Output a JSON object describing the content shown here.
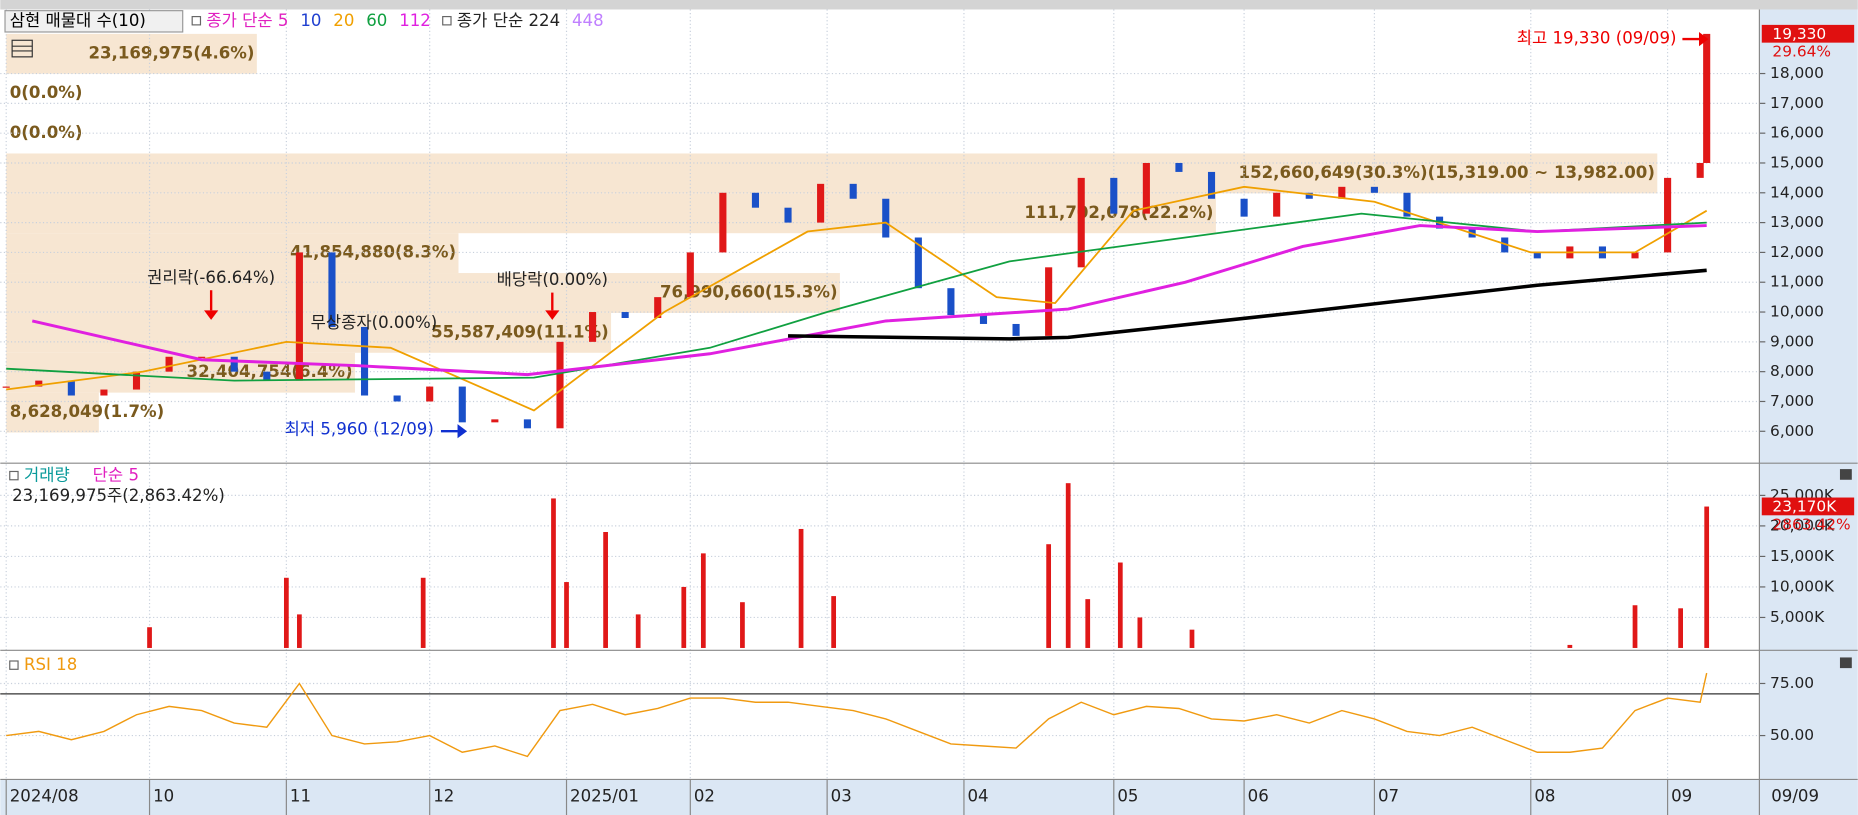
{
  "header": {
    "title": "삼현 매물대 수(10)"
  },
  "ma_legend": [
    {
      "name": "종가 단순 5",
      "color": "#e020c0"
    },
    {
      "name": "10",
      "color": "#2040d0"
    },
    {
      "name": "20",
      "color": "#f0a000"
    },
    {
      "name": "60",
      "color": "#10a040"
    },
    {
      "name": "112",
      "color": "#e020e0"
    },
    {
      "name": "종가 단순 224",
      "color": "#000000"
    },
    {
      "name": "448",
      "color": "#c080ff"
    }
  ],
  "xaxis": {
    "xlim": [
      0,
      261
    ],
    "ticks": [
      {
        "value": 0,
        "label": "2024/08"
      },
      {
        "value": 22,
        "label": "10"
      },
      {
        "value": 43,
        "label": "11"
      },
      {
        "value": 65,
        "label": "12"
      },
      {
        "value": 86,
        "label": "2025/01"
      },
      {
        "value": 105,
        "label": "02"
      },
      {
        "value": 126,
        "label": "03"
      },
      {
        "value": 147,
        "label": "04"
      },
      {
        "value": 170,
        "label": "05"
      },
      {
        "value": 190,
        "label": "06"
      },
      {
        "value": 210,
        "label": "07"
      },
      {
        "value": 234,
        "label": "08"
      },
      {
        "value": 255,
        "label": "09"
      }
    ],
    "current": "09/09"
  },
  "price": {
    "ylim": [
      4970,
      19990
    ],
    "yticks": [
      {
        "value": 6000,
        "label": "6,000"
      },
      {
        "value": 7000,
        "label": "7,000"
      },
      {
        "value": 8000,
        "label": "8,000"
      },
      {
        "value": 9000,
        "label": "9,000"
      },
      {
        "value": 10000,
        "label": "10,000"
      },
      {
        "value": 11000,
        "label": "11,000"
      },
      {
        "value": 12000,
        "label": "12,000"
      },
      {
        "value": 13000,
        "label": "13,000"
      },
      {
        "value": 14000,
        "label": "14,000"
      },
      {
        "value": 15000,
        "label": "15,000"
      },
      {
        "value": 16000,
        "label": "16,000"
      },
      {
        "value": 17000,
        "label": "17,000"
      },
      {
        "value": 18000,
        "label": "18,000"
      }
    ],
    "last_label": "19,330",
    "change_label": "29.64%",
    "x": [
      0,
      5,
      10,
      15,
      20,
      25,
      30,
      35,
      40,
      45,
      50,
      55,
      60,
      65,
      70,
      75,
      80,
      85,
      90,
      95,
      100,
      105,
      110,
      115,
      120,
      125,
      130,
      135,
      140,
      145,
      150,
      155,
      160,
      165,
      170,
      175,
      180,
      185,
      190,
      195,
      200,
      205,
      210,
      215,
      220,
      225,
      230,
      235,
      240,
      245,
      250,
      255,
      260,
      261
    ],
    "close": [
      7500,
      7700,
      7200,
      7400,
      8000,
      8500,
      8500,
      8000,
      7700,
      12000,
      9500,
      7200,
      7000,
      7500,
      6300,
      6400,
      6100,
      9000,
      10000,
      9800,
      10500,
      12000,
      14000,
      13500,
      13000,
      14300,
      13800,
      12500,
      10800,
      9900,
      9600,
      9200,
      11500,
      14500,
      13300,
      15000,
      14700,
      13800,
      13200,
      14000,
      13800,
      14200,
      14000,
      13200,
      12800,
      12500,
      12000,
      11800,
      12200,
      11800,
      12000,
      14500,
      15000,
      19330
    ],
    "ma": [
      {
        "name": "20",
        "color": "#f0a000",
        "x": [
          0,
          21,
          43,
          59,
          81,
          101,
          123,
          135,
          152,
          161,
          173,
          190,
          210,
          234,
          250,
          261
        ],
        "values": [
          7400,
          8000,
          9000,
          8800,
          6700,
          10000,
          12700,
          13000,
          10500,
          10300,
          13400,
          14200,
          13700,
          12000,
          12000,
          13400
        ]
      },
      {
        "name": "60",
        "color": "#10a040",
        "x": [
          0,
          35,
          81,
          108,
          126,
          154,
          181,
          208,
          235,
          261
        ],
        "values": [
          8100,
          7700,
          7800,
          8800,
          10000,
          11700,
          12500,
          13300,
          12700,
          13000
        ]
      },
      {
        "name": "112",
        "color": "#e020e0",
        "x": [
          4,
          30,
          54,
          80,
          108,
          135,
          163,
          181,
          199,
          217,
          235,
          261
        ],
        "values": [
          9700,
          8400,
          8200,
          7900,
          8600,
          9700,
          10100,
          11000,
          12200,
          12900,
          12700,
          12900
        ]
      },
      {
        "name": "224",
        "color": "#000000",
        "x": [
          120,
          154,
          163,
          199,
          235,
          261
        ],
        "values": [
          9200,
          9100,
          9150,
          10000,
          10900,
          11400
        ]
      }
    ],
    "band_edges": [
      5960,
      7297,
      8634,
      9971,
      11308,
      12645,
      13982,
      15319,
      16656,
      17993,
      19330
    ],
    "bands": [
      {
        "label": "8,628,049(1.7%)",
        "share": 1.7
      },
      {
        "label": "32,404,754(6.4%)",
        "share": 6.4
      },
      {
        "label": "55,587,409(11.1%)",
        "share": 11.1
      },
      {
        "label": "76,990,660(15.3%)",
        "share": 15.3
      },
      {
        "label": "41,854,880(8.3%)",
        "share": 8.3
      },
      {
        "label": "111,702,078(22.2%)",
        "share": 22.2
      },
      {
        "label": "152,660,649(30.3%)(15,319.00 ~ 13,982.00)",
        "share": 30.3
      },
      {
        "label": "0(0.0%)",
        "share": 0
      },
      {
        "label": "0(0.0%)",
        "share": 0
      },
      {
        "label": "23,169,975(4.6%)",
        "share": 4.6
      }
    ],
    "annotations": [
      "권리락(-66.64%)",
      "무상종자(0.00%)",
      "배당락(0.00%)",
      "최고 19,330 (09/09)",
      "최저 5,960 (12/09)"
    ]
  },
  "volume": {
    "title": "거래량",
    "ma_name": "단순 5",
    "summary": "23,169,975주(2,863.42%)",
    "ylim": [
      0,
      29500
    ],
    "yticks": [
      {
        "value": 5000,
        "label": "5,000K"
      },
      {
        "value": 10000,
        "label": "10,000K"
      },
      {
        "value": 15000,
        "label": "15,000K"
      },
      {
        "value": 20000,
        "label": "20,000K"
      },
      {
        "value": 25000,
        "label": "25,000K"
      }
    ],
    "last_label": "23,170K",
    "change_label": "2863.42%",
    "x": [
      22,
      43,
      45,
      64,
      84,
      86,
      92,
      97,
      104,
      107,
      113,
      122,
      127,
      160,
      163,
      166,
      171,
      174,
      182,
      240,
      250,
      257,
      261
    ],
    "values": [
      3400,
      11500,
      5500,
      11500,
      24500,
      10800,
      19000,
      5500,
      10000,
      15500,
      7500,
      19500,
      8500,
      17000,
      27000,
      8000,
      14000,
      5000,
      3000,
      500,
      7000,
      6500,
      23170
    ]
  },
  "rsi": {
    "title": "RSI 18",
    "ylim": [
      29.5,
      89.2
    ],
    "yticks": [
      {
        "value": 50,
        "label": "50.00"
      },
      {
        "value": 75,
        "label": "75.00"
      }
    ],
    "reference": 70,
    "values": [
      50,
      52,
      48,
      52,
      60,
      64,
      62,
      56,
      54,
      75,
      50,
      46,
      47,
      50,
      42,
      45,
      40,
      62,
      65,
      60,
      63,
      68,
      68,
      66,
      66,
      64,
      62,
      58,
      52,
      46,
      45,
      44,
      58,
      66,
      60,
      64,
      63,
      58,
      57,
      60,
      56,
      62,
      58,
      52,
      50,
      54,
      48,
      42,
      42,
      44,
      62,
      68,
      66,
      80
    ]
  }
}
